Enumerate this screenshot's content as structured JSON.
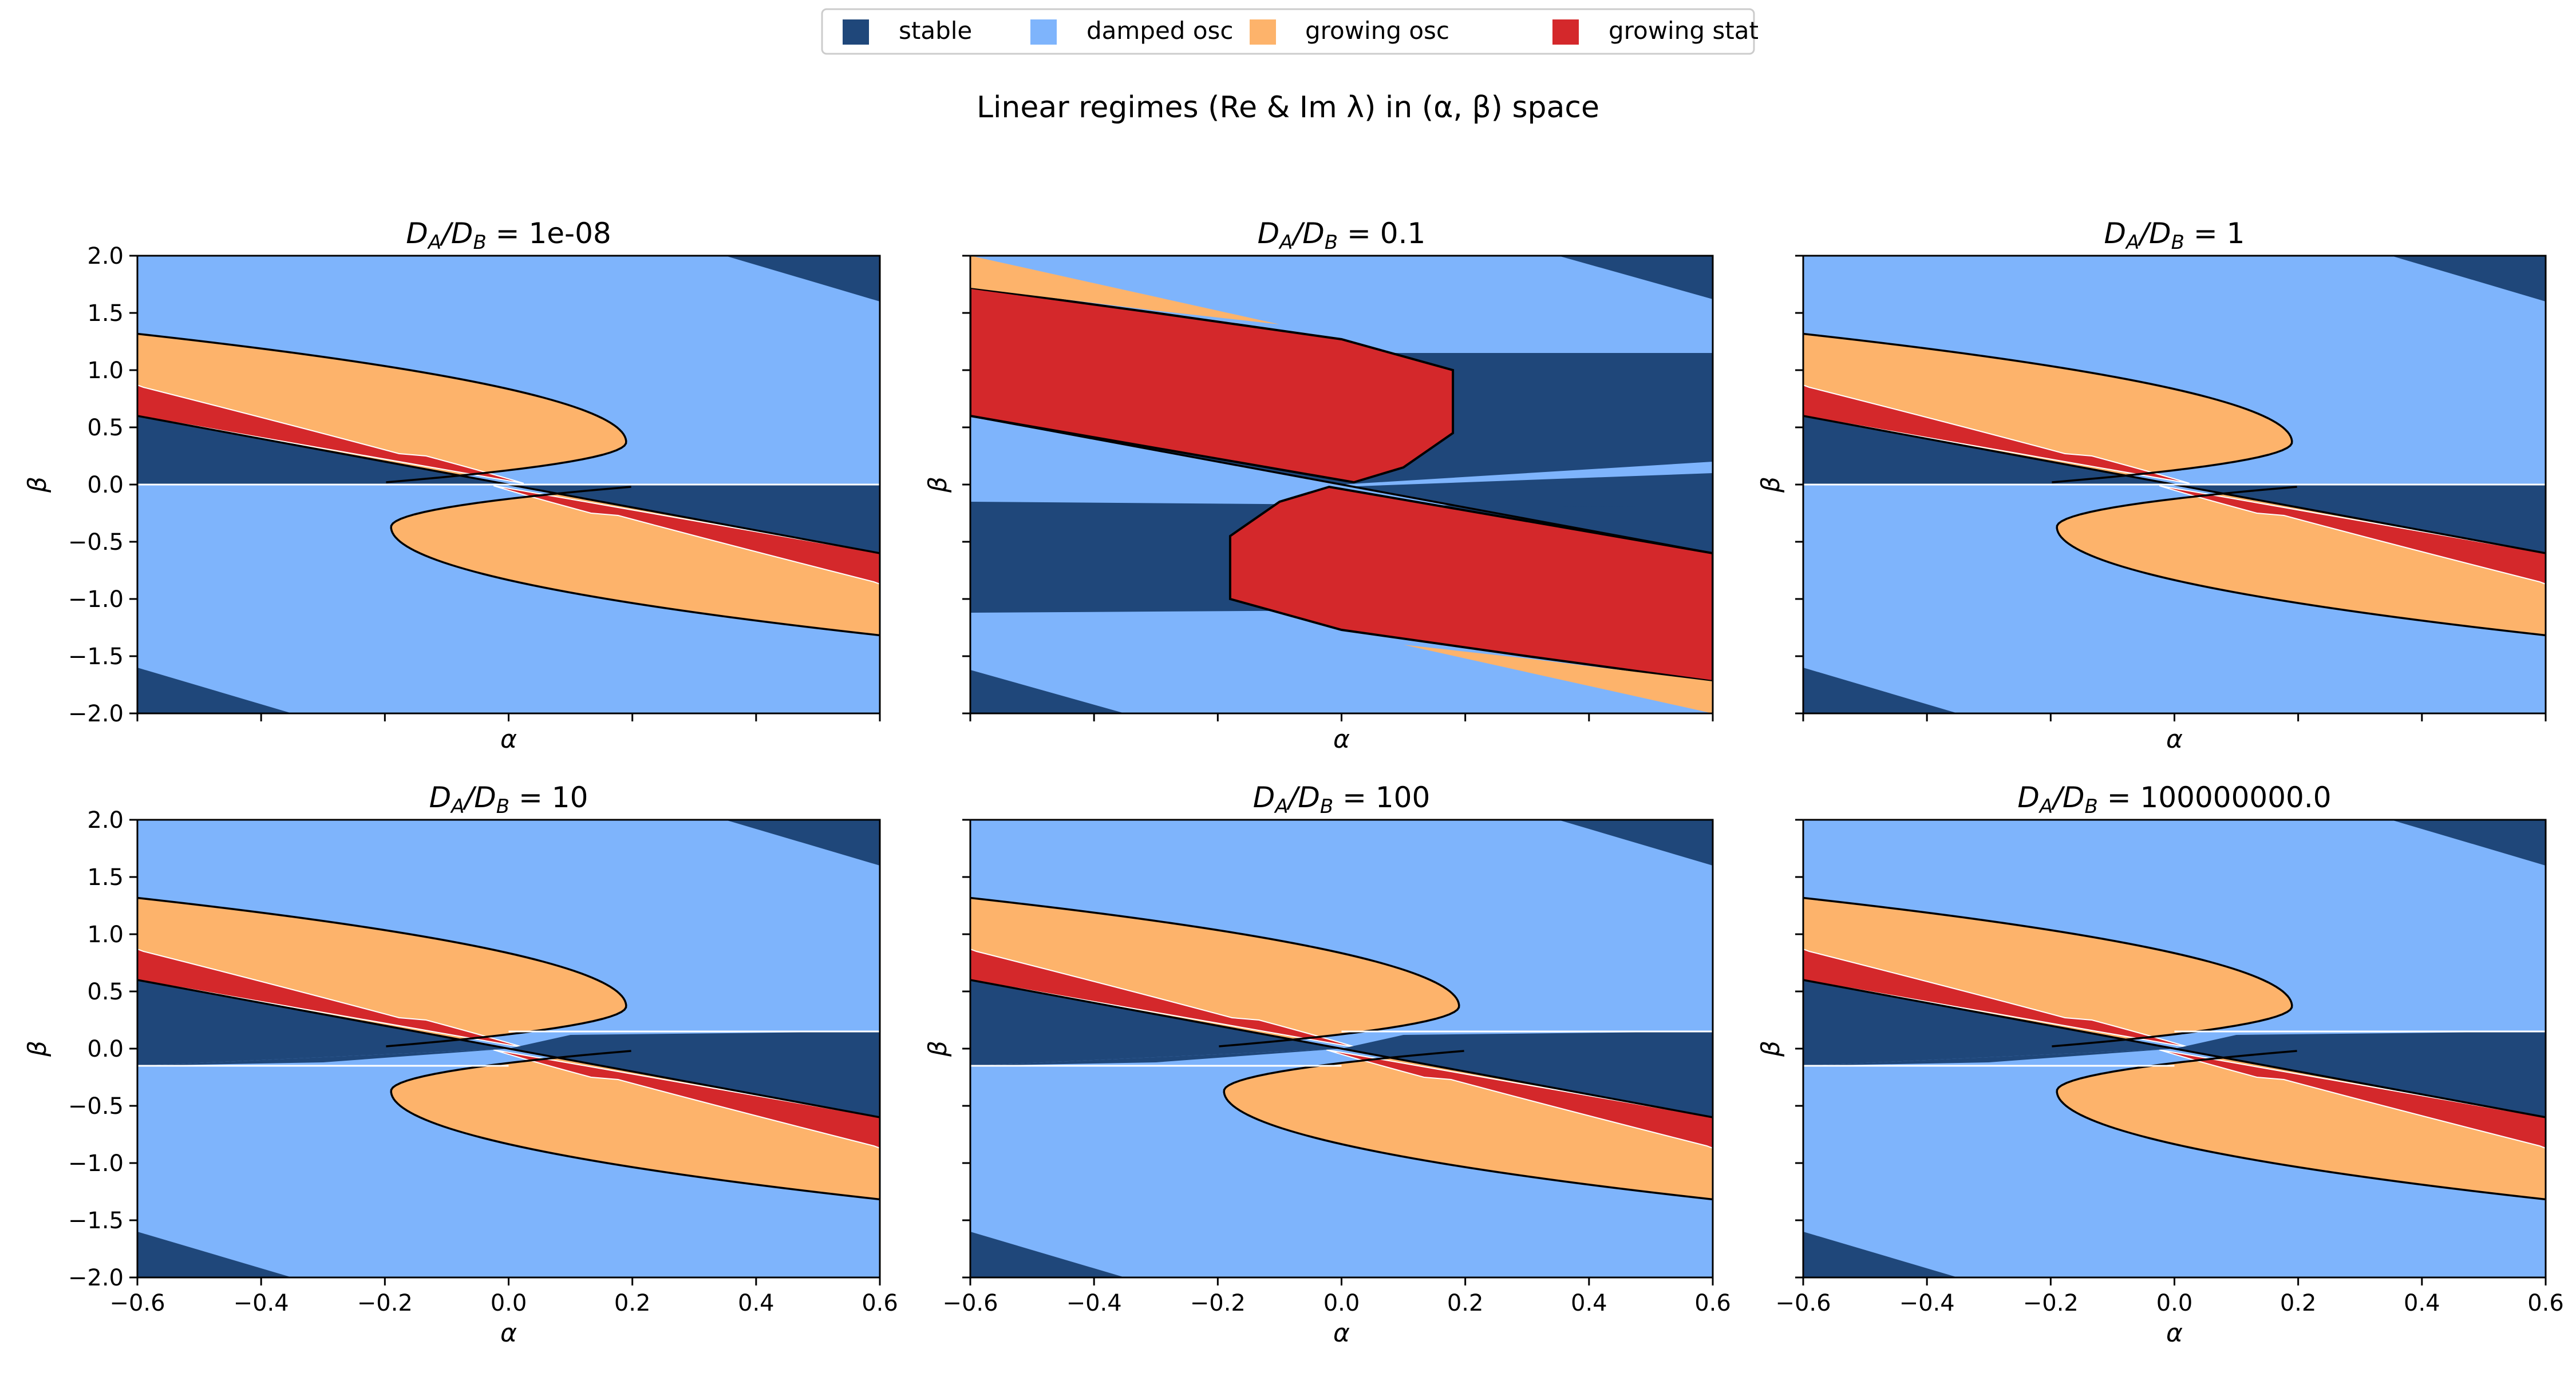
{
  "figure": {
    "suptitle": "Linear regimes (Re & Im λ) in (α, β) space"
  },
  "legend": [
    {
      "label": "stable",
      "color": "#1f477a"
    },
    {
      "label": "damped osc",
      "color": "#7eb4fc"
    },
    {
      "label": "growing osc",
      "color": "#fdb36b"
    },
    {
      "label": "growing stat",
      "color": "#d4282b"
    }
  ],
  "chart_data": [
    {
      "type": "heatmap",
      "title": "D_A/D_B = 1e-08",
      "title_value": "1e-08",
      "ratio": 1e-08,
      "xlabel": "α",
      "ylabel": "β",
      "xlim": [
        -0.6,
        0.6
      ],
      "ylim": [
        -2.0,
        2.0
      ],
      "grid": false,
      "xticks": [
        "−0.6",
        "−0.4",
        "−0.2",
        "0.0",
        "0.2",
        "0.4",
        "0.6"
      ],
      "yticks": [
        "−2.0",
        "−1.5",
        "−1.0",
        "−0.5",
        "0.0",
        "0.5",
        "1.0",
        "1.5",
        "2.0"
      ],
      "regimes": [
        "stable",
        "damped osc",
        "growing osc",
        "growing stat"
      ]
    },
    {
      "type": "heatmap",
      "title": "D_A/D_B = 0.1",
      "title_value": "0.1",
      "ratio": 0.1,
      "xlabel": "α",
      "ylabel": "β",
      "xlim": [
        -0.6,
        0.6
      ],
      "ylim": [
        -2.0,
        2.0
      ],
      "grid": false,
      "xticks": [
        "−0.6",
        "−0.4",
        "−0.2",
        "0.0",
        "0.2",
        "0.4",
        "0.6"
      ],
      "yticks": [
        "−2.0",
        "−1.5",
        "−1.0",
        "−0.5",
        "0.0",
        "0.5",
        "1.0",
        "1.5",
        "2.0"
      ],
      "regimes": [
        "stable",
        "damped osc",
        "growing osc",
        "growing stat"
      ]
    },
    {
      "type": "heatmap",
      "title": "D_A/D_B = 1",
      "title_value": "1",
      "ratio": 1,
      "xlabel": "α",
      "ylabel": "β",
      "xlim": [
        -0.6,
        0.6
      ],
      "ylim": [
        -2.0,
        2.0
      ],
      "grid": false,
      "xticks": [
        "−0.6",
        "−0.4",
        "−0.2",
        "0.0",
        "0.2",
        "0.4",
        "0.6"
      ],
      "yticks": [
        "−2.0",
        "−1.5",
        "−1.0",
        "−0.5",
        "0.0",
        "0.5",
        "1.0",
        "1.5",
        "2.0"
      ],
      "regimes": [
        "stable",
        "damped osc",
        "growing osc",
        "growing stat"
      ]
    },
    {
      "type": "heatmap",
      "title": "D_A/D_B = 10",
      "title_value": "10",
      "ratio": 10,
      "xlabel": "α",
      "ylabel": "β",
      "xlim": [
        -0.6,
        0.6
      ],
      "ylim": [
        -2.0,
        2.0
      ],
      "grid": false,
      "xticks": [
        "−0.6",
        "−0.4",
        "−0.2",
        "0.0",
        "0.2",
        "0.4",
        "0.6"
      ],
      "yticks": [
        "−2.0",
        "−1.5",
        "−1.0",
        "−0.5",
        "0.0",
        "0.5",
        "1.0",
        "1.5",
        "2.0"
      ],
      "regimes": [
        "stable",
        "damped osc",
        "growing osc",
        "growing stat"
      ]
    },
    {
      "type": "heatmap",
      "title": "D_A/D_B = 100",
      "title_value": "100",
      "ratio": 100,
      "xlabel": "α",
      "ylabel": "β",
      "xlim": [
        -0.6,
        0.6
      ],
      "ylim": [
        -2.0,
        2.0
      ],
      "grid": false,
      "xticks": [
        "−0.6",
        "−0.4",
        "−0.2",
        "0.0",
        "0.2",
        "0.4",
        "0.6"
      ],
      "yticks": [
        "−2.0",
        "−1.5",
        "−1.0",
        "−0.5",
        "0.0",
        "0.5",
        "1.0",
        "1.5",
        "2.0"
      ],
      "regimes": [
        "stable",
        "damped osc",
        "growing osc",
        "growing stat"
      ]
    },
    {
      "type": "heatmap",
      "title": "D_A/D_B = 100000000.0",
      "title_value": "100000000.0",
      "ratio": 100000000.0,
      "xlabel": "α",
      "ylabel": "β",
      "xlim": [
        -0.6,
        0.6
      ],
      "ylim": [
        -2.0,
        2.0
      ],
      "grid": false,
      "xticks": [
        "−0.6",
        "−0.4",
        "−0.2",
        "0.0",
        "0.2",
        "0.4",
        "0.6"
      ],
      "yticks": [
        "−2.0",
        "−1.5",
        "−1.0",
        "−0.5",
        "0.0",
        "0.5",
        "1.0",
        "1.5",
        "2.0"
      ],
      "regimes": [
        "stable",
        "damped osc",
        "growing osc",
        "growing stat"
      ]
    }
  ]
}
